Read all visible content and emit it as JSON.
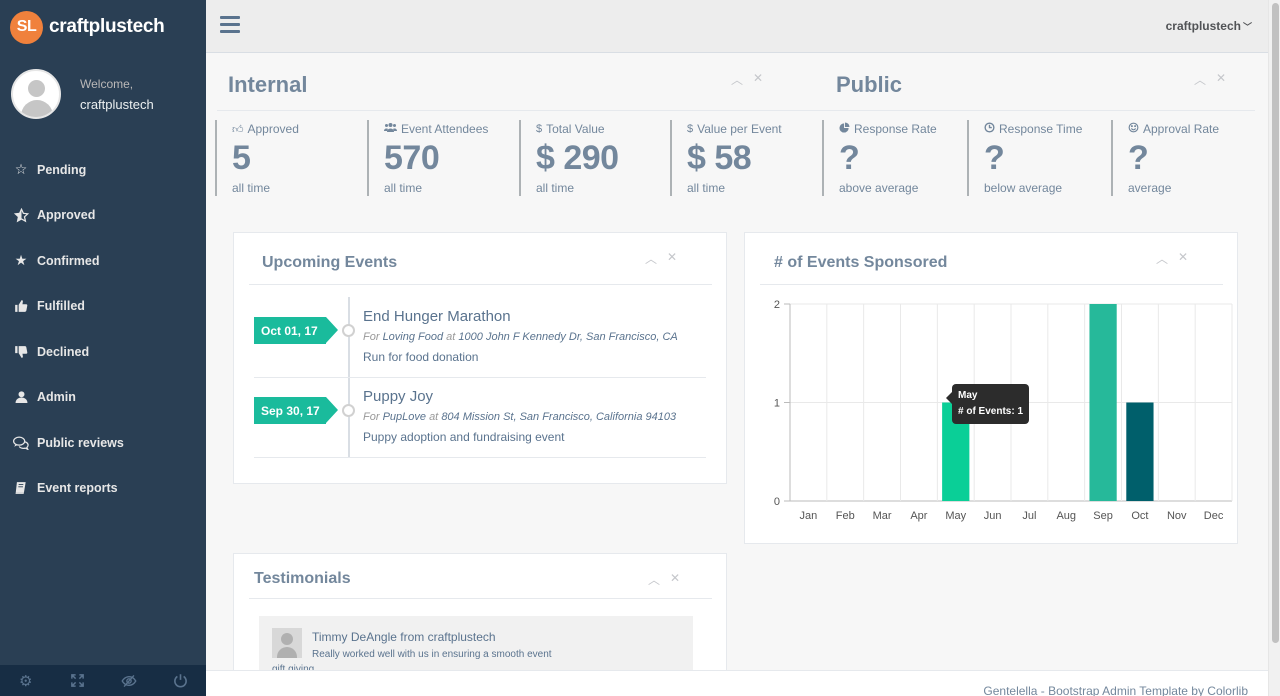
{
  "brand": {
    "logo_text": "SL",
    "name": "craftplustech"
  },
  "profile": {
    "welcome": "Welcome,",
    "username": "craftplustech"
  },
  "sidebar": {
    "items": [
      {
        "label": "Pending",
        "icon": "star-outline-icon"
      },
      {
        "label": "Approved",
        "icon": "star-half-icon"
      },
      {
        "label": "Confirmed",
        "icon": "star-icon"
      },
      {
        "label": "Fulfilled",
        "icon": "thumbs-up-icon"
      },
      {
        "label": "Declined",
        "icon": "thumbs-down-icon"
      },
      {
        "label": "Admin",
        "icon": "user-icon"
      },
      {
        "label": "Public reviews",
        "icon": "comments-icon"
      },
      {
        "label": "Event reports",
        "icon": "book-icon"
      }
    ],
    "footer": [
      "settings-icon",
      "fullscreen-icon",
      "lock-icon",
      "power-icon"
    ]
  },
  "topnav": {
    "user": "craftplustech"
  },
  "internal": {
    "title": "Internal",
    "tiles": [
      {
        "label": "Approved",
        "value": "5",
        "sub": "all time"
      },
      {
        "label": "Event Attendees",
        "value": "570",
        "sub": "all time"
      },
      {
        "label": "Total Value",
        "value": "$ 290",
        "sub": "all time"
      },
      {
        "label": "Value per Event",
        "value": "$ 58",
        "sub": "all time"
      }
    ]
  },
  "public": {
    "title": "Public",
    "tiles": [
      {
        "label": "Response Rate",
        "value": "?",
        "sub": "above average"
      },
      {
        "label": "Response Time",
        "value": "?",
        "sub": "below average"
      },
      {
        "label": "Approval Rate",
        "value": "?",
        "sub": "average"
      }
    ]
  },
  "upcoming": {
    "title": "Upcoming Events",
    "events": [
      {
        "date": "Oct 01, 17",
        "title": "End Hunger Marathon",
        "for_word": "For",
        "org": "Loving Food",
        "at_word": "at",
        "address": "1000 John F Kennedy Dr, San Francisco, CA",
        "desc": "Run for food donation"
      },
      {
        "date": "Sep 30, 17",
        "title": "Puppy Joy",
        "for_word": "For",
        "org": "PupLove",
        "at_word": "at",
        "address": "804 Mission St, San Francisco, California 94103",
        "desc": "Puppy adoption and fundraising event"
      }
    ]
  },
  "sponsored": {
    "title": "# of Events Sponsored",
    "tooltip": {
      "month": "May",
      "text": "# of Events: 1"
    }
  },
  "chart_data": {
    "type": "bar",
    "title": "# of Events Sponsored",
    "categories": [
      "Jan",
      "Feb",
      "Mar",
      "Apr",
      "May",
      "Jun",
      "Jul",
      "Aug",
      "Sep",
      "Oct",
      "Nov",
      "Dec"
    ],
    "values": [
      0,
      0,
      0,
      0,
      1,
      0,
      0,
      0,
      2,
      1,
      0,
      0
    ],
    "bar_colors": [
      "#26B99A",
      "#26B99A",
      "#26B99A",
      "#26B99A",
      "#0ACF97",
      "#26B99A",
      "#26B99A",
      "#26B99A",
      "#26B99A",
      "#005F6B",
      "#26B99A",
      "#26B99A"
    ],
    "ylim": [
      0,
      2
    ],
    "yticks": [
      0,
      1,
      2
    ],
    "grid": true
  },
  "testimonials": {
    "title": "Testimonials",
    "items": [
      {
        "name": "Timmy DeAngle from craftplustech",
        "quote": "Really worked well with us in ensuring a smooth event",
        "extra": "gift giving"
      }
    ]
  },
  "footer": {
    "text": "Gentelella - Bootstrap Admin Template by Colorlib"
  }
}
